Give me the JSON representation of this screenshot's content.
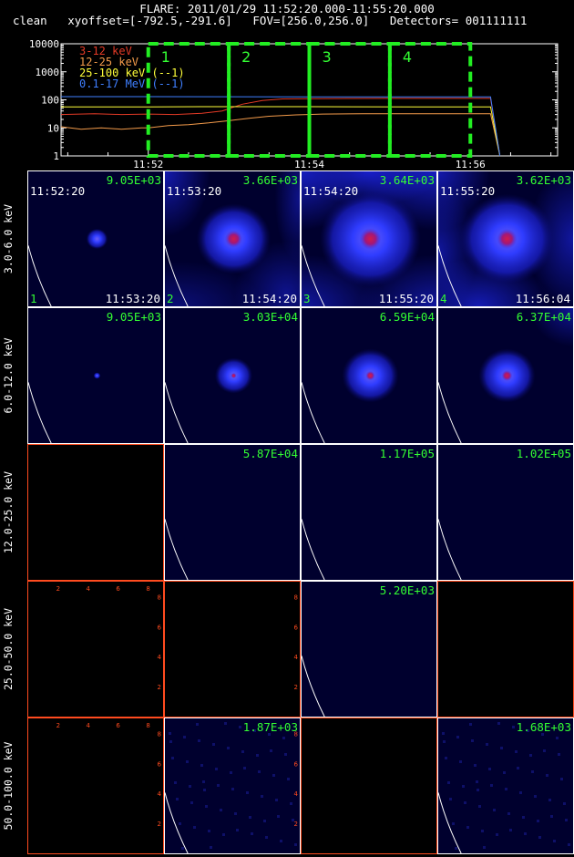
{
  "header": {
    "line1": "FLARE: 2011/01/29 11:52:20.000-11:55:20.000",
    "line2": "clean   xyoffset=[-792.5,-291.6]   FOV=[256.0,256.0]   Detectors= 001111111"
  },
  "colors": {
    "grid_border": "#ffffff",
    "grid_border_empty": "#ff4b1f",
    "label_green": "#33ff33",
    "box_green": "#22ee22"
  },
  "chart_data": [
    {
      "type": "line",
      "yscale": "log",
      "ylim": [
        1,
        10000
      ],
      "y_ticks": [
        "1",
        "10",
        "100",
        "1000",
        "10000"
      ],
      "x_ticks": [
        "11:52",
        "11:54",
        "11:56"
      ],
      "x_tick_values": [
        0,
        120,
        240
      ],
      "xlim": [
        -65,
        305
      ],
      "legend_position": "top-left",
      "series": [
        {
          "name": "3-12 keV",
          "color": "#e33a26",
          "x": [
            -65,
            -40,
            -20,
            0,
            20,
            40,
            55,
            70,
            85,
            100,
            120,
            150,
            180,
            220,
            250,
            255,
            262
          ],
          "y": [
            30,
            32,
            30,
            31,
            30,
            33,
            40,
            70,
            95,
            108,
            110,
            112,
            113,
            113,
            113,
            113,
            1
          ]
        },
        {
          "name": "12-25 keV",
          "color": "#f29a4a",
          "x": [
            -65,
            -50,
            -35,
            -20,
            -5,
            0,
            15,
            30,
            45,
            60,
            75,
            90,
            110,
            130,
            160,
            200,
            250,
            255,
            262
          ],
          "y": [
            11,
            9,
            10,
            9,
            10,
            10,
            12,
            13,
            15,
            18,
            22,
            26,
            29,
            31,
            32,
            32,
            32,
            32,
            1
          ]
        },
        {
          "name": "25-100 keV (--1)",
          "color": "#ffff3a",
          "x": [
            -65,
            0,
            40,
            80,
            120,
            200,
            255,
            262
          ],
          "y": [
            56,
            56,
            57,
            57,
            57,
            56,
            56,
            1
          ]
        },
        {
          "name": "0.1-17 MeV (--1)",
          "color": "#3f7fff",
          "x": [
            -65,
            0,
            60,
            120,
            200,
            255,
            262
          ],
          "y": [
            130,
            130,
            129,
            128,
            128,
            128,
            1
          ]
        }
      ],
      "intervals": [
        {
          "label": "1",
          "start": 0,
          "end": 60
        },
        {
          "label": "2",
          "start": 60,
          "end": 120
        },
        {
          "label": "3",
          "start": 120,
          "end": 180
        },
        {
          "label": "4",
          "start": 180,
          "end": 240
        }
      ]
    },
    {
      "type": "heatmap",
      "rows": [
        "3.0-6.0 keV",
        "6.0-12.0 keV",
        "12.0-25.0 keV",
        "25.0-50.0 keV",
        "50.0-100.0 keV"
      ],
      "start_times": [
        "11:52:20",
        "11:53:20",
        "11:54:20",
        "11:55:20"
      ],
      "end_times": [
        "11:53:20",
        "11:54:20",
        "11:55:20",
        "11:56:04"
      ],
      "interval_labels": [
        "1",
        "2",
        "3",
        "4"
      ],
      "peak_values": [
        [
          "9.05E+03",
          "3.66E+03",
          "3.64E+03",
          "3.62E+03"
        ],
        [
          "9.05E+03",
          "3.03E+04",
          "6.59E+04",
          "6.37E+04"
        ],
        [
          "",
          "5.87E+04",
          "1.17E+05",
          "1.02E+05"
        ],
        [
          "",
          "",
          "5.20E+03",
          ""
        ],
        [
          "",
          "1.87E+03",
          "",
          "1.68E+03"
        ]
      ],
      "empty_axis_ticks": [
        "2",
        "4",
        "6",
        "8"
      ]
    }
  ]
}
